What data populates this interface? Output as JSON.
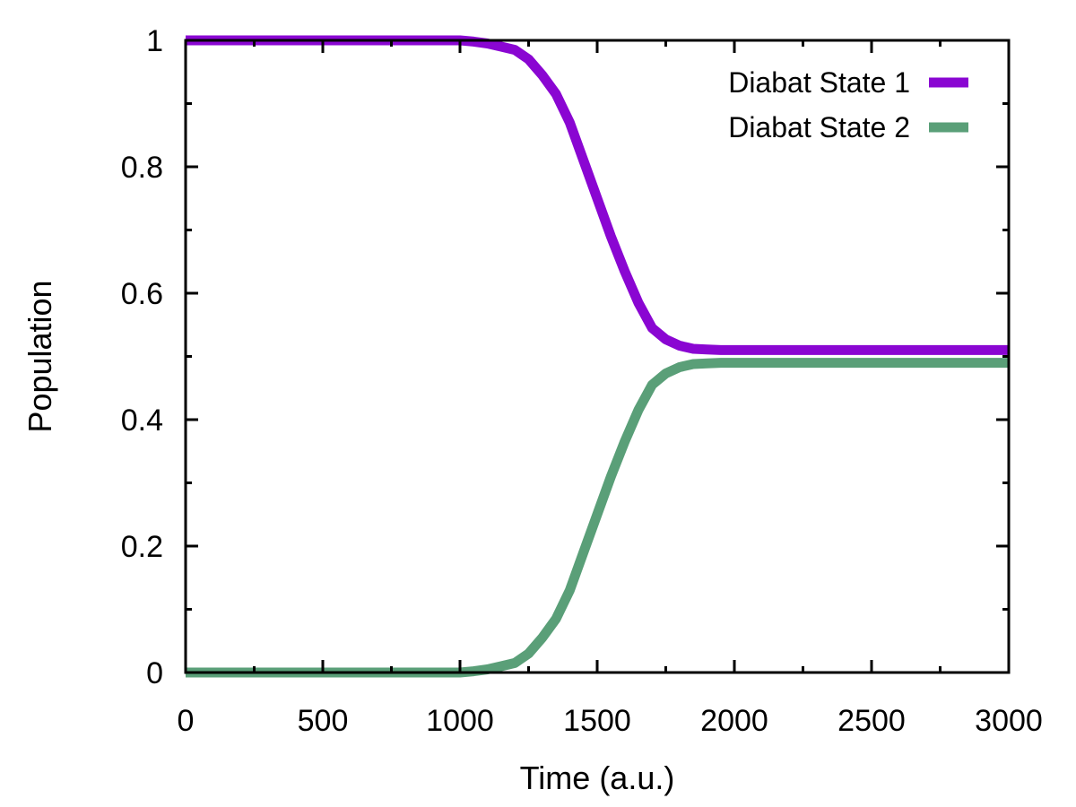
{
  "chart_data": {
    "type": "line",
    "title": "",
    "xlabel": "Time (a.u.)",
    "ylabel": "Population",
    "xlim": [
      0,
      3000
    ],
    "ylim": [
      0,
      1
    ],
    "xticks": [
      0,
      500,
      1000,
      1500,
      2000,
      2500,
      3000
    ],
    "yticks": [
      0,
      0.2,
      0.4,
      0.6,
      0.8,
      1
    ],
    "ytick_labels": [
      "0",
      "0.2",
      "0.4",
      "0.6",
      "0.8",
      "1"
    ],
    "grid": false,
    "legend_position": "top-right",
    "series": [
      {
        "name": "Diabat State 1",
        "color": "#8a06d2",
        "x": [
          0,
          500,
          1000,
          1050,
          1100,
          1150,
          1200,
          1250,
          1300,
          1350,
          1400,
          1450,
          1500,
          1550,
          1600,
          1650,
          1700,
          1750,
          1800,
          1850,
          1900,
          1950,
          2000,
          2500,
          3000
        ],
        "y": [
          1.0,
          1.0,
          1.0,
          0.998,
          0.995,
          0.99,
          0.985,
          0.97,
          0.945,
          0.915,
          0.87,
          0.81,
          0.75,
          0.69,
          0.635,
          0.585,
          0.545,
          0.527,
          0.517,
          0.512,
          0.511,
          0.51,
          0.51,
          0.51,
          0.51
        ]
      },
      {
        "name": "Diabat State 2",
        "color": "#5a9f78",
        "x": [
          0,
          500,
          1000,
          1050,
          1100,
          1150,
          1200,
          1250,
          1300,
          1350,
          1400,
          1450,
          1500,
          1550,
          1600,
          1650,
          1700,
          1750,
          1800,
          1850,
          1900,
          1950,
          2000,
          2500,
          3000
        ],
        "y": [
          0.0,
          0.0,
          0.0,
          0.002,
          0.005,
          0.01,
          0.015,
          0.03,
          0.055,
          0.085,
          0.13,
          0.19,
          0.25,
          0.31,
          0.365,
          0.415,
          0.455,
          0.473,
          0.483,
          0.488,
          0.489,
          0.49,
          0.49,
          0.49,
          0.49
        ]
      }
    ]
  }
}
